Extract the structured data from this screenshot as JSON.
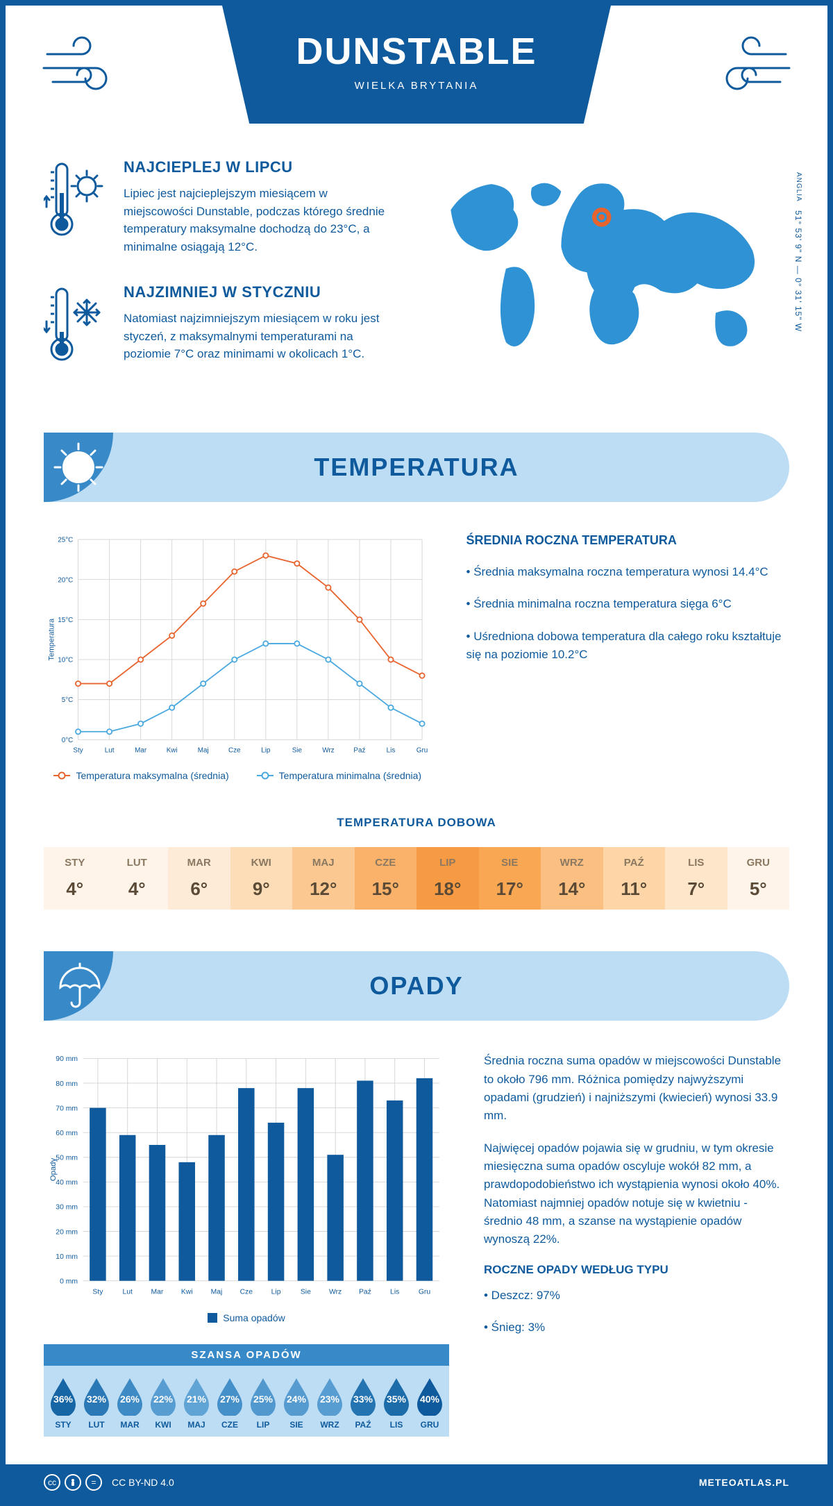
{
  "header": {
    "city": "DUNSTABLE",
    "country": "WIELKA BRYTANIA"
  },
  "coords": {
    "region": "ANGLIA",
    "text": "51° 53' 9\" N — 0° 31' 15\" W"
  },
  "hottest": {
    "title": "NAJCIEPLEJ W LIPCU",
    "body": "Lipiec jest najcieplejszym miesiącem w miejscowości Dunstable, podczas którego średnie temperatury maksymalne dochodzą do 23°C, a minimalne osiągają 12°C."
  },
  "coldest": {
    "title": "NAJZIMNIEJ W STYCZNIU",
    "body": "Natomiast najzimniejszym miesiącem w roku jest styczeń, z maksymalnymi temperaturami na poziomie 7°C oraz minimami w okolicach 1°C."
  },
  "sections": {
    "temperature": "TEMPERATURA",
    "precipitation": "OPADY"
  },
  "temp_chart": {
    "type": "line",
    "ylabel": "Temperatura",
    "months": [
      "Sty",
      "Lut",
      "Mar",
      "Kwi",
      "Maj",
      "Cze",
      "Lip",
      "Sie",
      "Wrz",
      "Paź",
      "Lis",
      "Gru"
    ],
    "max_series": {
      "label": "Temperatura maksymalna (średnia)",
      "color": "#e8642e",
      "values": [
        7,
        7,
        10,
        13,
        17,
        21,
        23,
        22,
        19,
        15,
        10,
        8
      ]
    },
    "min_series": {
      "label": "Temperatura minimalna (średnia)",
      "color": "#4aa8e0",
      "values": [
        1,
        1,
        2,
        4,
        7,
        10,
        12,
        12,
        10,
        7,
        4,
        2
      ]
    },
    "ylim": [
      0,
      25
    ],
    "ytick_step": 5,
    "ytick_suffix": "°C",
    "grid_color": "#d4d4d4",
    "background_color": "#ffffff",
    "line_width": 2,
    "marker_size": 4
  },
  "annual_temp": {
    "title": "ŚREDNIA ROCZNA TEMPERATURA",
    "line1": "• Średnia maksymalna roczna temperatura wynosi 14.4°C",
    "line2": "• Średnia minimalna roczna temperatura sięga 6°C",
    "line3": "• Uśredniona dobowa temperatura dla całego roku kształtuje się na poziomie 10.2°C"
  },
  "daily_temp": {
    "title": "TEMPERATURA DOBOWA",
    "months": [
      "STY",
      "LUT",
      "MAR",
      "KWI",
      "MAJ",
      "CZE",
      "LIP",
      "SIE",
      "WRZ",
      "PAŹ",
      "LIS",
      "GRU"
    ],
    "values": [
      "4°",
      "4°",
      "6°",
      "9°",
      "12°",
      "15°",
      "18°",
      "17°",
      "14°",
      "11°",
      "7°",
      "5°"
    ],
    "cell_colors": [
      "#fff4e9",
      "#fff4e9",
      "#fdebd7",
      "#fddcb8",
      "#fbc891",
      "#fab26a",
      "#f79a44",
      "#f9a752",
      "#fcbf82",
      "#fdd5a7",
      "#fee6cb",
      "#fff4e9"
    ]
  },
  "precip_chart": {
    "type": "bar",
    "ylabel": "Opady",
    "months": [
      "Sty",
      "Lut",
      "Mar",
      "Kwi",
      "Maj",
      "Cze",
      "Lip",
      "Sie",
      "Wrz",
      "Paź",
      "Lis",
      "Gru"
    ],
    "values": [
      70,
      59,
      55,
      48,
      59,
      78,
      64,
      78,
      51,
      81,
      73,
      82
    ],
    "legend": "Suma opadów",
    "bar_color": "#0f5a9c",
    "ylim": [
      0,
      90
    ],
    "ytick_step": 10,
    "ytick_suffix": " mm",
    "grid_color": "#d4d4d4",
    "bar_width": 0.55
  },
  "precip_text": {
    "p1": "Średnia roczna suma opadów w miejscowości Dunstable to około 796 mm. Różnica pomiędzy najwyższymi opadami (grudzień) i najniższymi (kwiecień) wynosi 33.9 mm.",
    "p2": "Najwięcej opadów pojawia się w grudniu, w tym okresie miesięczna suma opadów oscyluje wokół 82 mm, a prawdopodobieństwo ich wystąpienia wynosi około 40%. Natomiast najmniej opadów notuje się w kwietniu - średnio 48 mm, a szanse na wystąpienie opadów wynoszą 22%."
  },
  "chance": {
    "title": "SZANSA OPADÓW",
    "months": [
      "STY",
      "LUT",
      "MAR",
      "KWI",
      "MAJ",
      "CZE",
      "LIP",
      "SIE",
      "WRZ",
      "PAŹ",
      "LIS",
      "GRU"
    ],
    "values": [
      "36%",
      "32%",
      "26%",
      "22%",
      "21%",
      "27%",
      "25%",
      "24%",
      "23%",
      "33%",
      "35%",
      "40%"
    ],
    "drop_colors": [
      "#1666a5",
      "#2a78b5",
      "#3e8ac4",
      "#579dd1",
      "#60a3d5",
      "#4690c9",
      "#5098ce",
      "#559bd0",
      "#579dd1",
      "#2574b2",
      "#1c6caa",
      "#0f5a9c"
    ]
  },
  "yearly_type": {
    "title": "ROCZNE OPADY WEDŁUG TYPU",
    "rain": "• Deszcz: 97%",
    "snow": "• Śnieg: 3%"
  },
  "footer": {
    "license": "CC BY-ND 4.0",
    "brand": "METEOATLAS.PL"
  },
  "palette": {
    "primary": "#0f5a9c",
    "secondary": "#3889c7",
    "light": "#bdddf4",
    "map_fill": "#2f92d4",
    "marker_ring": "#e8642e"
  }
}
